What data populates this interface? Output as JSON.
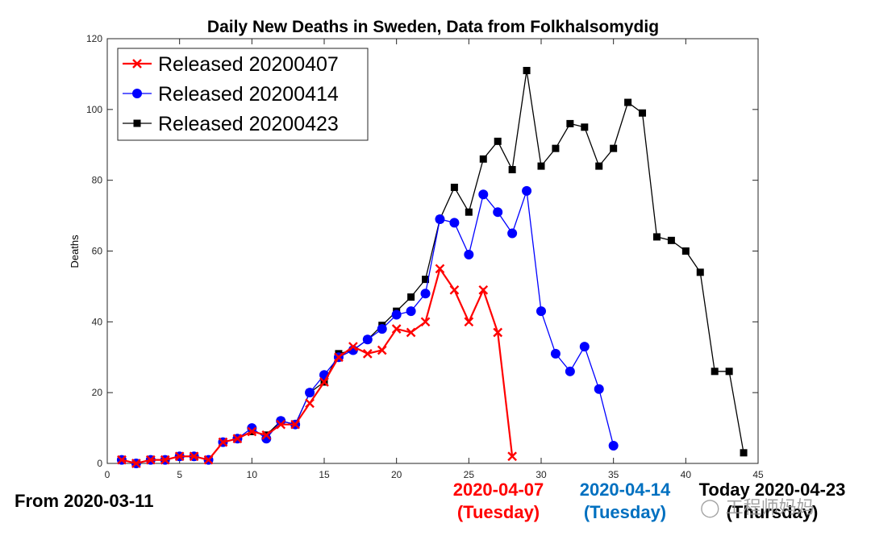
{
  "chart_data": {
    "type": "line",
    "title": "Daily New Deaths in Sweden, Data from Folkhalsomydig",
    "xlabel": "",
    "ylabel": "Deaths",
    "xlim": [
      0,
      45
    ],
    "ylim": [
      0,
      120
    ],
    "xticks": [
      0,
      5,
      10,
      15,
      20,
      25,
      30,
      35,
      40,
      45
    ],
    "yticks": [
      0,
      20,
      40,
      60,
      80,
      100,
      120
    ],
    "legend_position": "top-left",
    "series": [
      {
        "name": "Released 20200407",
        "color": "#ff0000",
        "marker": "x",
        "x": [
          1,
          2,
          3,
          4,
          5,
          6,
          7,
          8,
          9,
          10,
          11,
          12,
          13,
          14,
          15,
          16,
          17,
          18,
          19,
          20,
          21,
          22,
          23,
          24,
          25,
          26,
          27,
          28
        ],
        "y": [
          1,
          0,
          1,
          1,
          2,
          2,
          1,
          6,
          7,
          9,
          8,
          11,
          11,
          17,
          23,
          30,
          33,
          31,
          32,
          38,
          37,
          40,
          55,
          49,
          40,
          49,
          37,
          2
        ]
      },
      {
        "name": "Released 20200414",
        "color": "#0000ff",
        "marker": "circle",
        "x": [
          1,
          2,
          3,
          4,
          5,
          6,
          7,
          8,
          9,
          10,
          11,
          12,
          13,
          14,
          15,
          16,
          17,
          18,
          19,
          20,
          21,
          22,
          23,
          24,
          25,
          26,
          27,
          28,
          29,
          30,
          31,
          32,
          33,
          34,
          35
        ],
        "y": [
          1,
          0,
          1,
          1,
          2,
          2,
          1,
          6,
          7,
          10,
          7,
          12,
          11,
          20,
          25,
          30,
          32,
          35,
          38,
          42,
          43,
          48,
          69,
          68,
          59,
          76,
          71,
          65,
          77,
          43,
          31,
          26,
          33,
          21,
          5
        ]
      },
      {
        "name": "Released 20200423",
        "color": "#000000",
        "marker": "square",
        "x": [
          1,
          2,
          3,
          4,
          5,
          6,
          7,
          8,
          9,
          10,
          11,
          12,
          13,
          14,
          15,
          16,
          17,
          18,
          19,
          20,
          21,
          22,
          23,
          24,
          25,
          26,
          27,
          28,
          29,
          30,
          31,
          32,
          33,
          34,
          35,
          36,
          37,
          38,
          39,
          40,
          41,
          42,
          43,
          44
        ],
        "y": [
          1,
          0,
          1,
          1,
          2,
          2,
          1,
          6,
          7,
          9,
          8,
          12,
          11,
          20,
          23,
          31,
          32,
          35,
          39,
          43,
          47,
          52,
          69,
          78,
          71,
          86,
          91,
          83,
          111,
          84,
          89,
          96,
          95,
          84,
          89,
          102,
          99,
          64,
          63,
          60,
          54,
          26,
          26,
          3
        ]
      }
    ]
  },
  "annotations": {
    "start": "From 2020-03-11",
    "release1_date": "2020-04-07",
    "release1_day": "(Tuesday)",
    "release1_color": "#ff0000",
    "release2_date": "2020-04-14",
    "release2_day": "(Tuesday)",
    "release2_color": "#0070c0",
    "today_date": "Today 2020-04-23",
    "today_day": "(Thursday)"
  },
  "watermark": {
    "icon": "wechat-icon",
    "text": "工程师妈妈"
  }
}
